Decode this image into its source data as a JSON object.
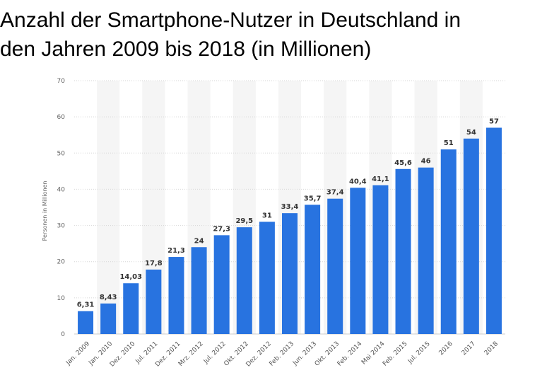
{
  "title": {
    "line1": "Anzahl der Smartphone-Nutzer in Deutschland in",
    "line2": "den Jahren 2009 bis 2018 (in Millionen)"
  },
  "chart_data": {
    "type": "bar",
    "title": "Anzahl der Smartphone-Nutzer in Deutschland in den Jahren 2009 bis 2018 (in Millionen)",
    "xlabel": "",
    "ylabel": "Personen in Millionen",
    "ylim": [
      0,
      70
    ],
    "yticks": [
      0,
      10,
      20,
      30,
      40,
      50,
      60,
      70
    ],
    "grid": true,
    "bar_color": "#2873e0",
    "categories": [
      "Jan. 2009",
      "Jan. 2010",
      "Dez. 2010",
      "Jul. 2011",
      "Dez. 2011",
      "Mrz. 2012",
      "Jul. 2012",
      "Okt. 2012",
      "Dez. 2012",
      "Feb. 2013",
      "Jun. 2013",
      "Okt. 2013",
      "Feb. 2014",
      "Mai 2014",
      "Feb. 2015",
      "Jul. 2015",
      "2016",
      "2017",
      "2018"
    ],
    "values": [
      6.31,
      8.43,
      14.03,
      17.8,
      21.3,
      24,
      27.3,
      29.5,
      31,
      33.4,
      35.7,
      37.4,
      40.4,
      41.1,
      45.6,
      46,
      51,
      54,
      57
    ],
    "value_labels": [
      "6,31",
      "8,43",
      "14,03",
      "17,8",
      "21,3",
      "24",
      "27,3",
      "29,5",
      "31",
      "33,4",
      "35,7",
      "37,4",
      "40,4",
      "41,1",
      "45,6",
      "46",
      "51",
      "54",
      "57"
    ]
  }
}
